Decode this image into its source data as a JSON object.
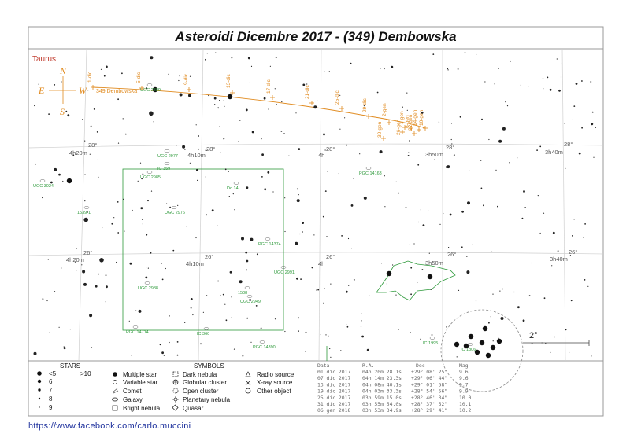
{
  "title": "Asteroidi Dicembre 2017 - (349) Dembowska",
  "constellation": "Taurus",
  "compass": {
    "n": "N",
    "s": "S",
    "e": "E",
    "w": "W"
  },
  "url": "https://www.facebook.com/carlo.muccini",
  "scale_label": "2°",
  "colors": {
    "orbit": "#e08a1e",
    "dso": "#2e9a3b",
    "grid": "#c8c8c8",
    "constellation": "#c0392b",
    "url": "#1c2f9c"
  },
  "chart_data": {
    "type": "scatter",
    "title": "Asteroidi Dicembre 2017 - (349) Dembowska",
    "ra_labels": [
      "4h20m",
      "4h10m",
      "4h",
      "3h50m",
      "3h40m"
    ],
    "dec_labels": [
      "28°",
      "26°"
    ],
    "path_label": "349 Dembowska",
    "path_dates": [
      "1-dic",
      "5-dic",
      "9-dic",
      "13-dic",
      "17-dic",
      "21-dic",
      "25-dic",
      "29-dic",
      "2-gen",
      "30-gen",
      "26-gen",
      "1-gen",
      "22-gen",
      "6-gen",
      "14-gen",
      "10-gen"
    ],
    "ephemeris": {
      "columns": [
        "Data",
        "R.A.",
        "Dec",
        "Mag"
      ],
      "rows": [
        [
          "01 dic 2017",
          "04h 20m 28.1s",
          "+29° 08' 25\"",
          "9.6"
        ],
        [
          "07 dic 2017",
          "04h 14m 23.3s",
          "+29° 06' 44\"",
          "9.6"
        ],
        [
          "13 dic 2017",
          "04h 08m 40.1s",
          "+29° 01' 58\"",
          "9.7"
        ],
        [
          "19 dic 2017",
          "04h 03m 33.3s",
          "+28° 54' 56\"",
          "9.9"
        ],
        [
          "25 dic 2017",
          "03h 59m 15.0s",
          "+28° 46' 34\"",
          "10.0"
        ],
        [
          "31 dic 2017",
          "03h 55m 54.0s",
          "+28° 37' 52\"",
          "10.1"
        ],
        [
          "06 gen 2018",
          "03h 53m 34.9s",
          "+28° 29' 41\"",
          "10.2"
        ]
      ]
    },
    "dso_labels": [
      "UGC 2889",
      "UGC 2977",
      "IC 359",
      "UGC 2985",
      "Do 14",
      "UGC 3024",
      "PGC 14163",
      "UGC 2976",
      "1539-1",
      "PGC 14374",
      "UGC 2991",
      "UGC 2988",
      "1508",
      "UGC 2949",
      "PGC 14714",
      "IC 360",
      "PGC 14390",
      "IC 1995",
      "IC 1806"
    ],
    "legend": {
      "stars_title": "STARS",
      "stars": [
        "<5",
        ">10",
        "6",
        "7",
        "8",
        "9"
      ],
      "symbols_title": "SYMBOLS",
      "symbols": [
        "Multiple star",
        "Variable star",
        "Comet",
        "Galaxy",
        "Bright nebula",
        "Dark nebula",
        "Globular cluster",
        "Open cluster",
        "Planetary nebula",
        "Quasar",
        "Radio source",
        "X-ray source",
        "Other object"
      ]
    }
  }
}
